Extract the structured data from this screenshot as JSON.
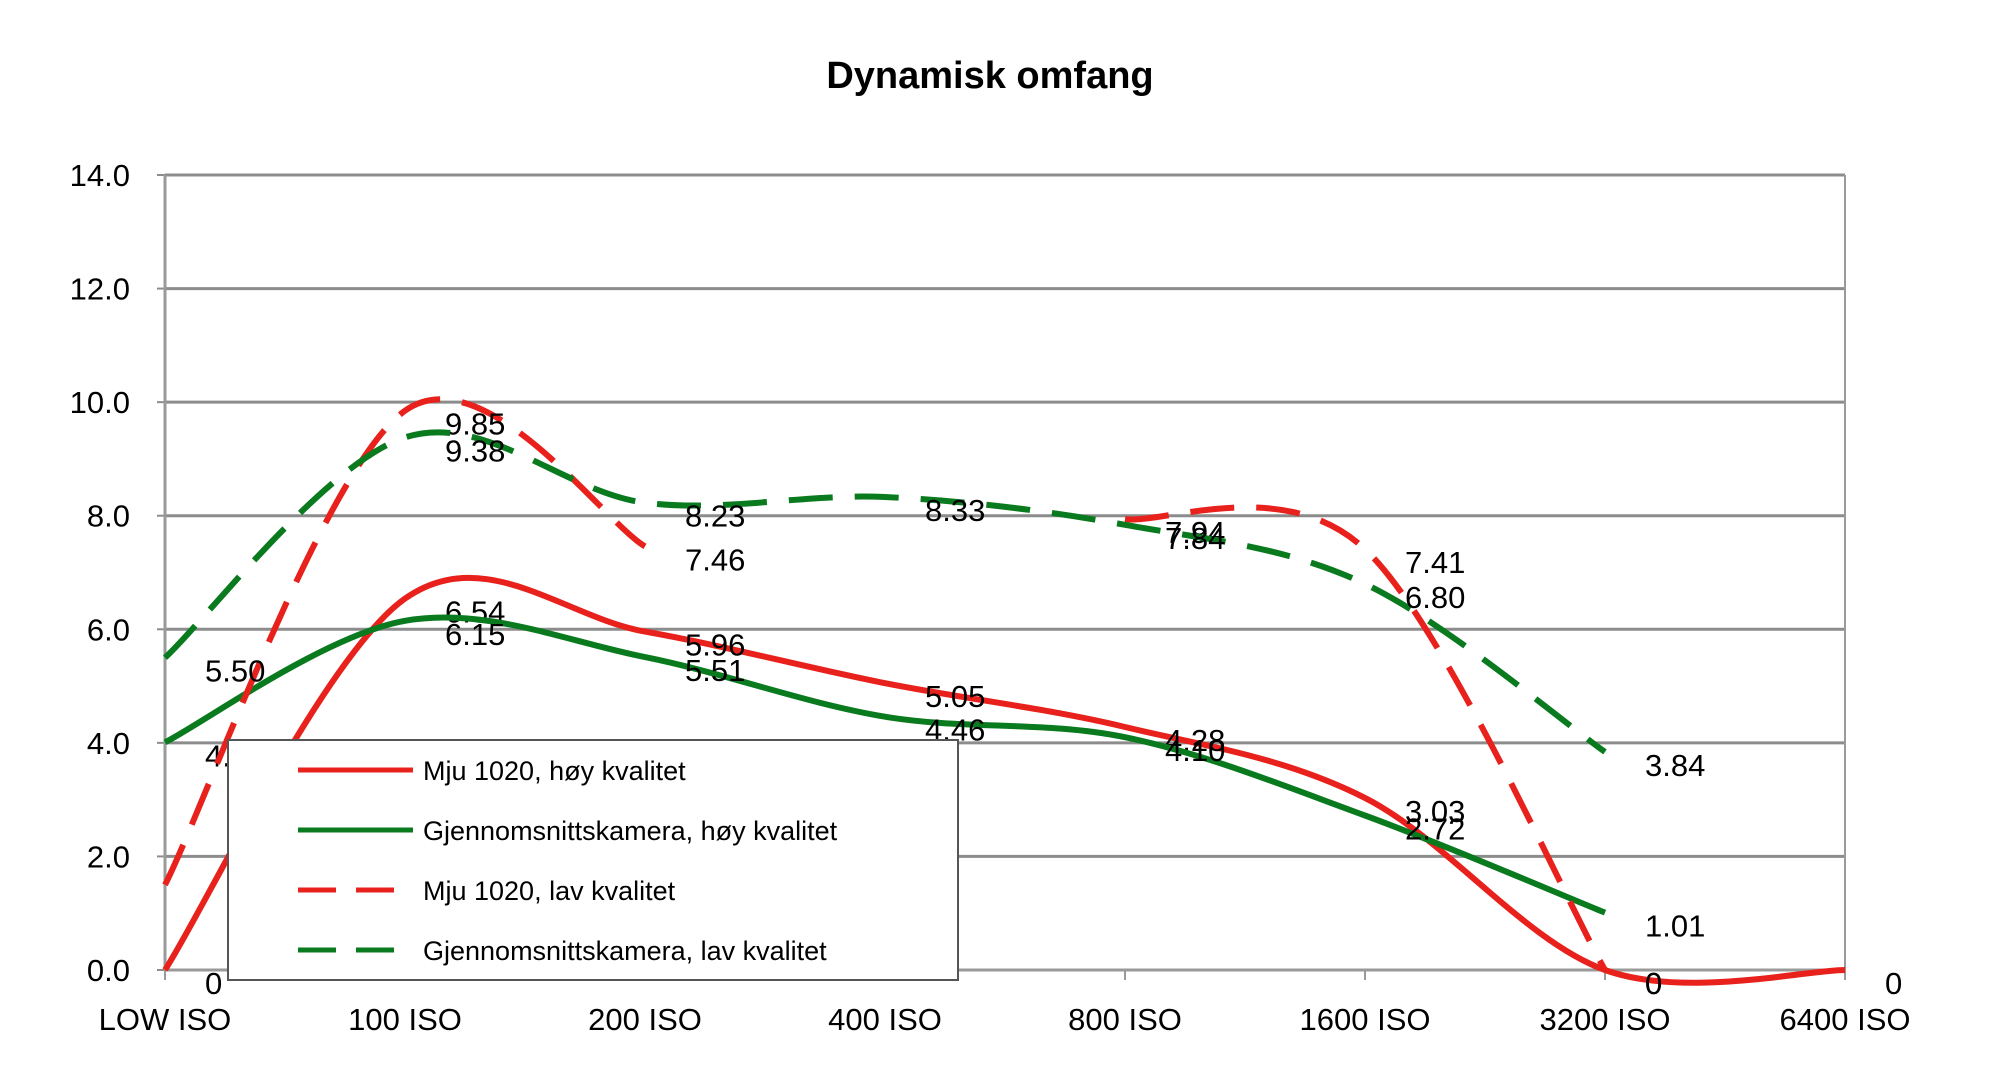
{
  "chart_data": {
    "type": "line",
    "title": "Dynamisk omfang",
    "xlabel": "",
    "ylabel": "",
    "categories": [
      "LOW ISO",
      "100 ISO",
      "200 ISO",
      "400 ISO",
      "800 ISO",
      "1600 ISO",
      "3200 ISO",
      "6400 ISO"
    ],
    "ylim": [
      0,
      14
    ],
    "yticks": [
      "0.0",
      "2.0",
      "4.0",
      "6.0",
      "8.0",
      "10.0",
      "12.0",
      "14.0"
    ],
    "grid": true,
    "legend_position": "lower-left",
    "series": [
      {
        "name": "Mju 1020, høy kvalitet",
        "color": "#e8211c",
        "dash": "solid",
        "values": [
          0,
          6.54,
          5.96,
          5.05,
          4.28,
          3.03,
          0,
          0
        ],
        "labels": [
          "0",
          "6.54",
          "5.96",
          "5.05",
          "4.28",
          "3.03",
          "0",
          "0"
        ]
      },
      {
        "name": "Gjennomsnittskamera, høy kvalitet",
        "color": "#0a7a1e",
        "dash": "solid",
        "values": [
          4.01,
          6.15,
          5.51,
          4.46,
          4.1,
          2.72,
          1.01,
          null
        ],
        "labels": [
          "4.01",
          "6.15",
          "5.51",
          "4.46",
          "4.10",
          "2.72",
          "1.01",
          null
        ]
      },
      {
        "name": "Mju 1020, lav kvalitet",
        "color": "#e8211c",
        "dash": "dashed",
        "values": [
          1.5,
          9.85,
          7.46,
          null,
          7.94,
          7.41,
          0,
          null
        ],
        "labels": [
          null,
          "9.85",
          "7.46",
          null,
          "7.94",
          "7.41",
          "0",
          null
        ]
      },
      {
        "name": "Gjennomsnittskamera, lav kvalitet",
        "color": "#0a7a1e",
        "dash": "dashed",
        "values": [
          5.5,
          9.38,
          8.23,
          8.33,
          7.84,
          6.8,
          3.84,
          null
        ],
        "labels": [
          "5.50",
          "9.38",
          "8.23",
          "8.33",
          "7.84",
          "6.80",
          "3.84",
          null
        ]
      }
    ]
  }
}
